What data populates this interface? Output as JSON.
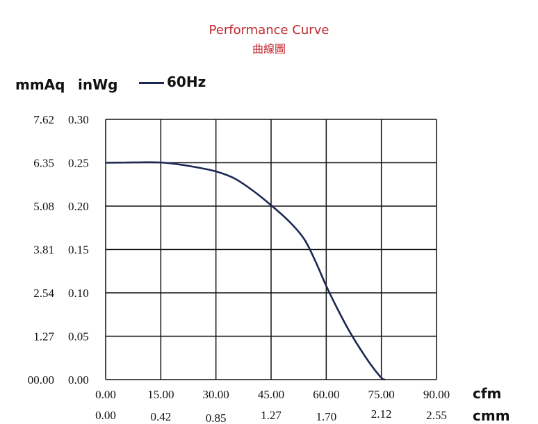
{
  "title": "Performance Curve",
  "subtitle": "曲線圖",
  "y_unit_left": "mmAq",
  "y_unit_right": "inWg",
  "x_unit_top": "cfm",
  "x_unit_bottom": "cmm",
  "line_color": "#1c2753",
  "chart_data": {
    "type": "line",
    "title": "Performance Curve",
    "subtitle": "曲線圖",
    "xlabel": "cfm",
    "x2label": "cmm",
    "ylabel": "inWg",
    "y2label": "mmAq",
    "xlim": [
      0,
      90
    ],
    "ylim": [
      0,
      0.3
    ],
    "grid": true,
    "legend_position": "top-left",
    "x_ticks": [
      "0.00",
      "15.00",
      "30.00",
      "45.00",
      "60.00",
      "75.00",
      "90.00"
    ],
    "x2_ticks": [
      "0.00",
      "0.42",
      "0.85",
      "1.27",
      "1.70",
      "2.12",
      "2.55"
    ],
    "y_ticks": [
      "0.00",
      "0.05",
      "0.10",
      "0.15",
      "0.20",
      "0.25",
      "0.30"
    ],
    "y2_ticks": [
      "00.00",
      "1.27",
      "2.54",
      "3.81",
      "5.08",
      "6.35",
      "7.62"
    ],
    "series": [
      {
        "name": "60Hz",
        "x": [
          0,
          5,
          10,
          15,
          20,
          25,
          30,
          35,
          40,
          45,
          50,
          54,
          57,
          60,
          63,
          66,
          69,
          72,
          75,
          76
        ],
        "y": [
          0.25,
          0.2502,
          0.2505,
          0.2503,
          0.248,
          0.2445,
          0.24,
          0.232,
          0.218,
          0.201,
          0.182,
          0.162,
          0.137,
          0.108,
          0.082,
          0.058,
          0.037,
          0.018,
          0.002,
          0.0
        ]
      }
    ]
  }
}
